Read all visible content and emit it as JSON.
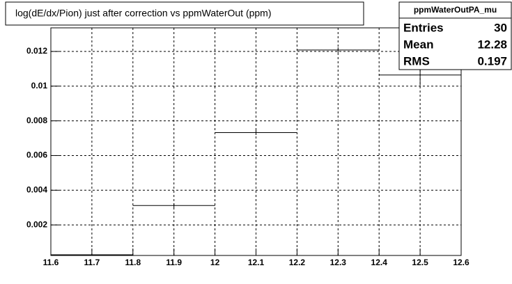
{
  "chart_data": {
    "type": "histogram",
    "title": "log(dE/dx/Pion) just after correction vs ppmWaterOut (ppm)",
    "bins": [
      11.6,
      11.8,
      12.0,
      12.2,
      12.4,
      12.6
    ],
    "values": [
      0.00028,
      0.00312,
      0.00732,
      0.01208,
      0.01064
    ],
    "errors": [
      4e-05,
      0.00012,
      0.00014,
      0.00016,
      0.0006
    ],
    "color": "#000000",
    "xlim": [
      11.6,
      12.6
    ],
    "xticks": [
      11.6,
      11.7,
      11.8,
      11.9,
      12,
      12.1,
      12.2,
      12.3,
      12.4,
      12.5,
      12.6
    ],
    "ylim": [
      0.00024,
      0.01336
    ],
    "yticks": [
      0.002,
      0.004,
      0.006,
      0.008,
      0.01,
      0.012
    ],
    "grid": true
  },
  "stats": {
    "title": "ppmWaterOutPA_mu",
    "rows": [
      {
        "label": "Entries",
        "value": 30
      },
      {
        "label": "Mean",
        "value": 12.28
      },
      {
        "label": "RMS",
        "value": 0.197
      }
    ]
  }
}
